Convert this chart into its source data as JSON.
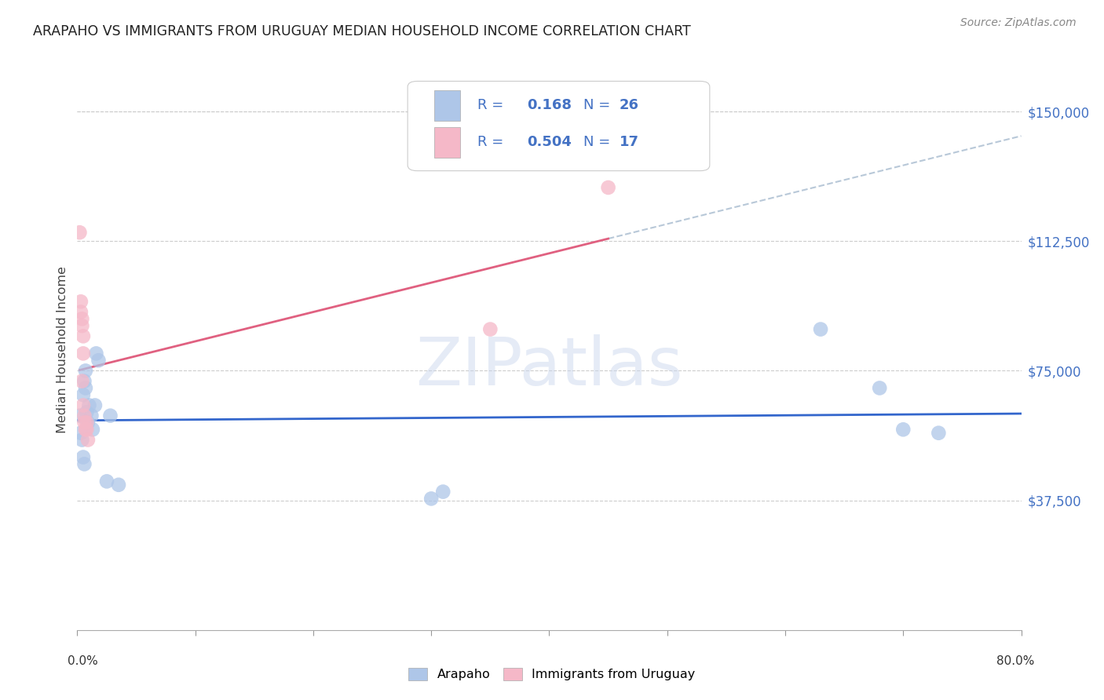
{
  "title": "ARAPAHO VS IMMIGRANTS FROM URUGUAY MEDIAN HOUSEHOLD INCOME CORRELATION CHART",
  "source": "Source: ZipAtlas.com",
  "ylabel": "Median Household Income",
  "ytick_values": [
    0,
    37500,
    75000,
    112500,
    150000
  ],
  "ytick_labels": [
    "",
    "$37,500",
    "$75,000",
    "$112,500",
    "$150,000"
  ],
  "xlim": [
    0.0,
    0.8
  ],
  "ylim": [
    0,
    162000
  ],
  "watermark": "ZIPatlas",
  "r1": "0.168",
  "n1": "26",
  "r2": "0.504",
  "n2": "17",
  "arapaho_color": "#aec6e8",
  "arapaho_edge": "#aec6e8",
  "uruguay_color": "#f5b8c8",
  "uruguay_edge": "#f5b8c8",
  "arapaho_line_color": "#3366cc",
  "uruguay_line_color": "#e06080",
  "dashed_ext_color": "#b8c8d8",
  "background_color": "#ffffff",
  "grid_color": "#cccccc",
  "ytick_color": "#4472c4",
  "title_color": "#222222",
  "source_color": "#888888",
  "label1": "Arapaho",
  "label2": "Immigrants from Uruguay",
  "arapaho_x": [
    0.002,
    0.003,
    0.004,
    0.005,
    0.005,
    0.006,
    0.006,
    0.007,
    0.007,
    0.008,
    0.009,
    0.01,
    0.012,
    0.013,
    0.015,
    0.016,
    0.018,
    0.025,
    0.028,
    0.035,
    0.3,
    0.31,
    0.63,
    0.68,
    0.7,
    0.73
  ],
  "arapaho_y": [
    62000,
    57000,
    55000,
    68000,
    50000,
    72000,
    48000,
    75000,
    70000,
    63000,
    60000,
    65000,
    62000,
    58000,
    65000,
    80000,
    78000,
    43000,
    62000,
    42000,
    38000,
    40000,
    87000,
    70000,
    58000,
    57000
  ],
  "uruguay_x": [
    0.002,
    0.003,
    0.003,
    0.004,
    0.004,
    0.004,
    0.005,
    0.005,
    0.005,
    0.006,
    0.006,
    0.007,
    0.008,
    0.008,
    0.009,
    0.35,
    0.45
  ],
  "uruguay_y": [
    115000,
    95000,
    92000,
    90000,
    88000,
    72000,
    85000,
    80000,
    65000,
    62000,
    60000,
    58000,
    60000,
    58000,
    55000,
    87000,
    128000
  ]
}
